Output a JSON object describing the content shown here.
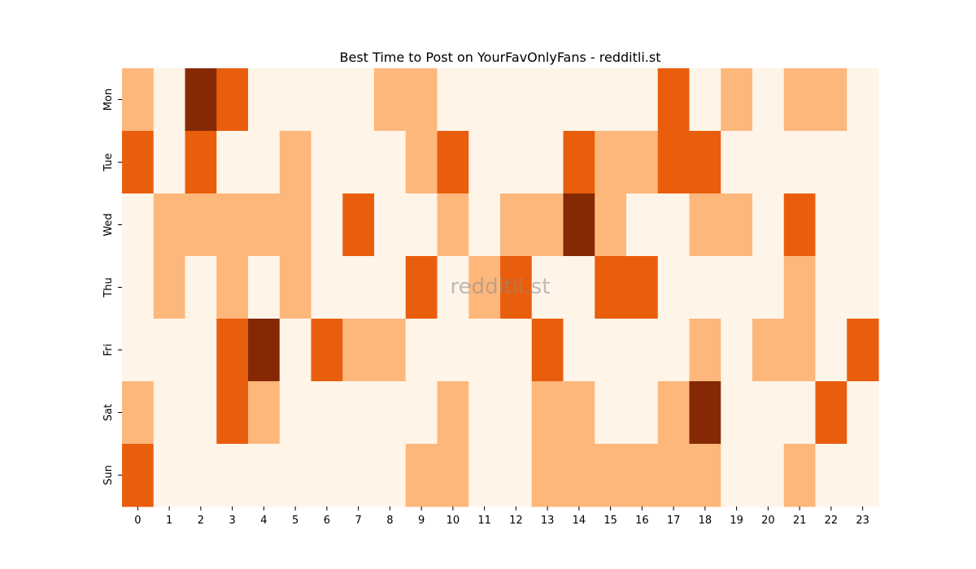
{
  "chart_data": {
    "type": "heatmap",
    "title": "Best Time to Post on YourFavOnlyFans - redditli.st",
    "watermark": "redditli.st",
    "x": [
      "0",
      "1",
      "2",
      "3",
      "4",
      "5",
      "6",
      "7",
      "8",
      "9",
      "10",
      "11",
      "12",
      "13",
      "14",
      "15",
      "16",
      "17",
      "18",
      "19",
      "20",
      "21",
      "22",
      "23"
    ],
    "y": [
      "Mon",
      "Tue",
      "Wed",
      "Thu",
      "Fri",
      "Sat",
      "Sun"
    ],
    "xlabel": "",
    "ylabel": "",
    "colormap": "Oranges",
    "colorscale": [
      "#fef4e8",
      "#fdb77b",
      "#e95e0d",
      "#842904"
    ],
    "values": [
      [
        1,
        0,
        3,
        2,
        0,
        0,
        0,
        0,
        1,
        1,
        0,
        0,
        0,
        0,
        0,
        0,
        0,
        2,
        0,
        1,
        0,
        1,
        1,
        0
      ],
      [
        2,
        0,
        2,
        0,
        0,
        1,
        0,
        0,
        0,
        1,
        2,
        0,
        0,
        0,
        2,
        1,
        1,
        2,
        2,
        0,
        0,
        0,
        0,
        0
      ],
      [
        0,
        1,
        1,
        1,
        1,
        1,
        0,
        2,
        0,
        0,
        1,
        0,
        1,
        1,
        3,
        1,
        0,
        0,
        1,
        1,
        0,
        2,
        0,
        0
      ],
      [
        0,
        1,
        0,
        1,
        0,
        1,
        0,
        0,
        0,
        2,
        0,
        1,
        2,
        0,
        0,
        2,
        2,
        0,
        0,
        0,
        0,
        1,
        0,
        0
      ],
      [
        0,
        0,
        0,
        2,
        3,
        0,
        2,
        1,
        1,
        0,
        0,
        0,
        0,
        2,
        0,
        0,
        0,
        0,
        1,
        0,
        1,
        1,
        0,
        2
      ],
      [
        1,
        0,
        0,
        2,
        1,
        0,
        0,
        0,
        0,
        0,
        1,
        0,
        0,
        1,
        1,
        0,
        0,
        1,
        3,
        0,
        0,
        0,
        2,
        0
      ],
      [
        2,
        0,
        0,
        0,
        0,
        0,
        0,
        0,
        0,
        1,
        1,
        0,
        0,
        1,
        1,
        1,
        1,
        1,
        1,
        0,
        0,
        1,
        0,
        0
      ]
    ],
    "colorbar": false,
    "grid": false
  }
}
